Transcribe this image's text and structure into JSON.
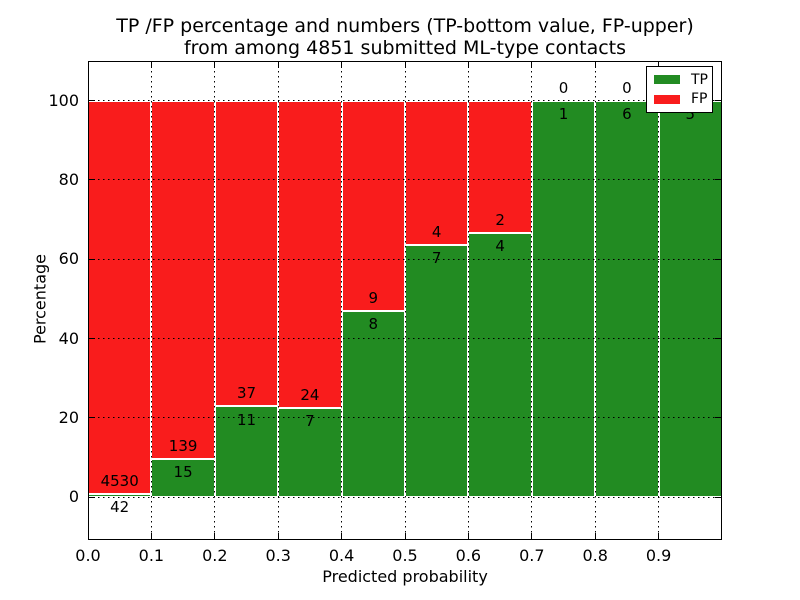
{
  "chart_data": {
    "type": "bar",
    "subtype": "stacked-percentage-histogram",
    "title_line1": "TP /FP percentage and numbers (TP-bottom value, FP-upper)",
    "title_line2": "from among 4851 submitted ML-type contacts",
    "xlabel": "Predicted probability",
    "ylabel": "Percentage",
    "total_contacts": 4851,
    "categories": [
      "0.0-0.1",
      "0.1-0.2",
      "0.2-0.3",
      "0.3-0.4",
      "0.4-0.5",
      "0.5-0.6",
      "0.6-0.7",
      "0.7-0.8",
      "0.8-0.9",
      "0.9-1.0"
    ],
    "x_tick_labels": [
      "0.0",
      "0.1",
      "0.2",
      "0.3",
      "0.4",
      "0.5",
      "0.6",
      "0.7",
      "0.8",
      "0.9"
    ],
    "y_ticks": [
      0,
      20,
      40,
      60,
      80,
      100
    ],
    "y_tick_labels": [
      "0",
      "20",
      "40",
      "60",
      "80",
      "100"
    ],
    "xlim": [
      0,
      1.0
    ],
    "ylim": [
      -10.8,
      110
    ],
    "grid": "dotted",
    "bar_width": 0.1,
    "series": [
      {
        "name": "TP",
        "color": "#228b22",
        "values": [
          42,
          15,
          11,
          7,
          8,
          7,
          4,
          1,
          6,
          5
        ]
      },
      {
        "name": "FP",
        "color": "#f91c1c",
        "values": [
          4530,
          139,
          37,
          24,
          9,
          4,
          2,
          0,
          0,
          0
        ]
      }
    ],
    "tp_percentages": [
      0.92,
      9.74,
      22.92,
      22.58,
      47.06,
      63.64,
      66.67,
      100,
      100,
      100
    ],
    "legend": {
      "position": "upper-right",
      "entries": [
        {
          "label": "TP",
          "color": "#228b22"
        },
        {
          "label": "FP",
          "color": "#f91c1c"
        }
      ]
    }
  }
}
